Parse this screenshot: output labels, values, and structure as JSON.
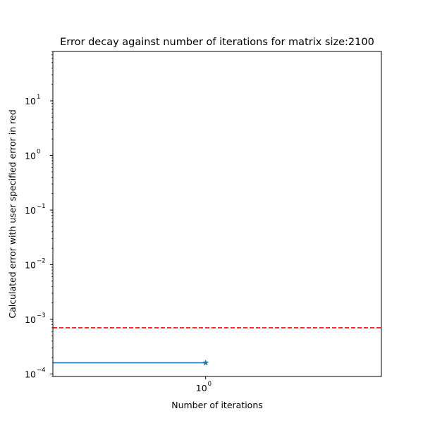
{
  "chart_data": {
    "type": "line",
    "title": "Error decay against number of iterations for matrix size:2100",
    "xlabel": "Number of iterations",
    "ylabel": "Calculated error with user specified error in red",
    "x_scale": "log",
    "y_scale": "log",
    "xlim": [
      0.6,
      1.8
    ],
    "ylim": [
      9e-05,
      80
    ],
    "grid": false,
    "x_ticks": [
      {
        "value": 1,
        "label_base": "10",
        "label_exp": "0"
      }
    ],
    "y_ticks": [
      {
        "value": 0.0001,
        "label_base": "10",
        "label_exp": "−4"
      },
      {
        "value": 0.001,
        "label_base": "10",
        "label_exp": "−3"
      },
      {
        "value": 0.01,
        "label_base": "10",
        "label_exp": "−2"
      },
      {
        "value": 0.1,
        "label_base": "10",
        "label_exp": "−1"
      },
      {
        "value": 1,
        "label_base": "10",
        "label_exp": "0"
      },
      {
        "value": 10,
        "label_base": "10",
        "label_exp": "1"
      }
    ],
    "series": [
      {
        "color": "#1f77b4",
        "line_style": "solid",
        "marker": "star",
        "points": [
          {
            "x": 1,
            "y": 0.00016
          }
        ],
        "line_from_x": 0.6
      }
    ],
    "reference_lines": [
      {
        "orientation": "horizontal",
        "y": 0.0007,
        "color": "#ff0000",
        "line_style": "dashed"
      }
    ]
  }
}
